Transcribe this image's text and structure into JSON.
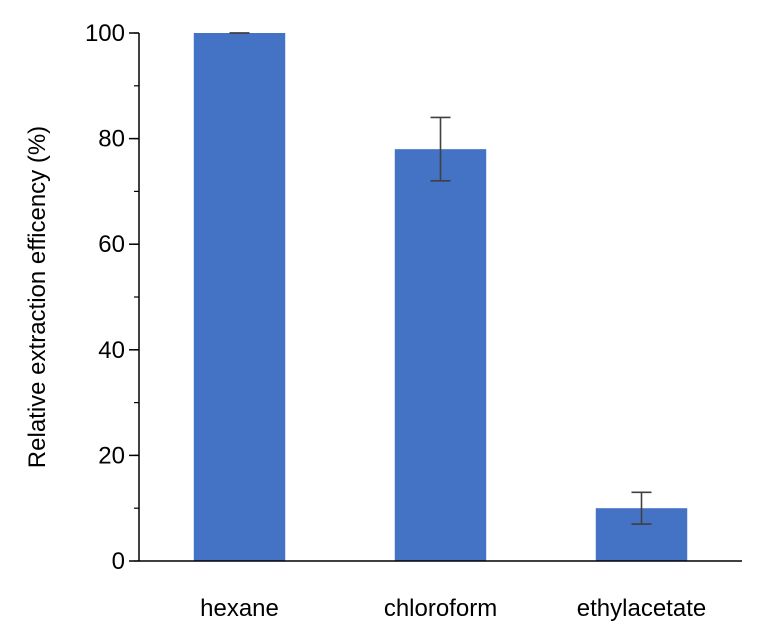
{
  "chart_data": {
    "type": "bar",
    "title": "",
    "xlabel": "",
    "ylabel": "Relative extraction efficency (%)",
    "categories": [
      "hexane",
      "chloroform",
      "ethylacetate"
    ],
    "values": [
      100,
      78,
      10
    ],
    "error": [
      0,
      6,
      3
    ],
    "ylim": [
      0,
      100
    ],
    "yticks": [
      0,
      20,
      40,
      60,
      80,
      100
    ],
    "ytick_labels": [
      "0",
      "20",
      "40",
      "60",
      "80",
      "100"
    ],
    "minor_y_step": 10,
    "grid": false,
    "legend": "none",
    "colors": {
      "bar": "#4472C4",
      "error_bar": "#404040",
      "axis": "#000000"
    }
  }
}
